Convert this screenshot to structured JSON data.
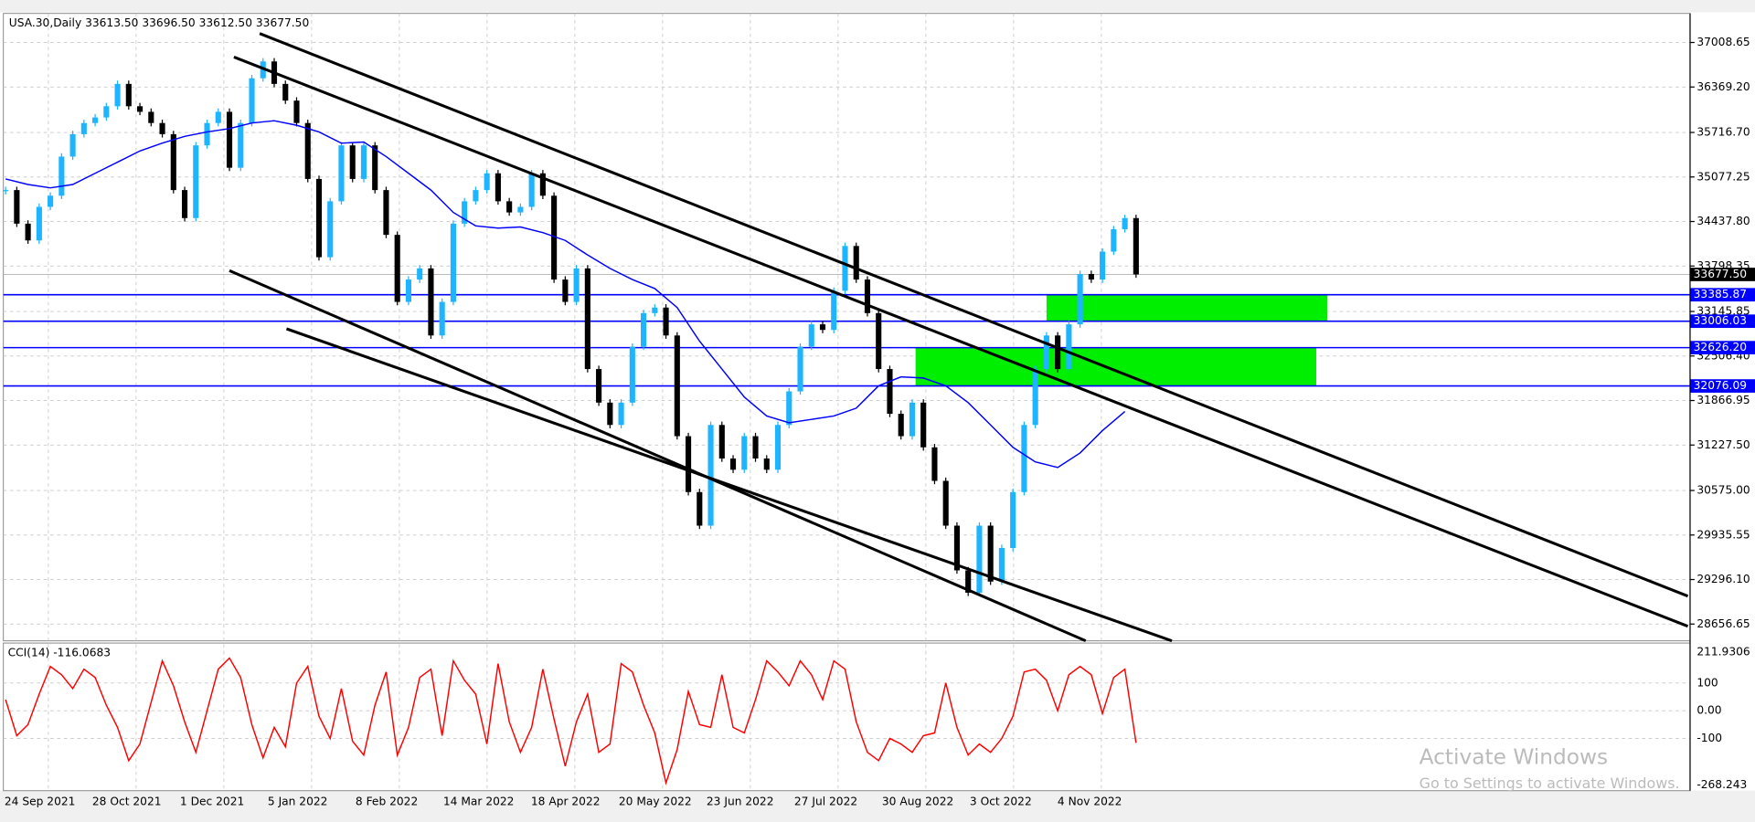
{
  "header": "USA.30,Daily  33613.50 33696.50 33612.50 33677.50",
  "price_axis": {
    "ylim": [
      28432,
      37426
    ],
    "ticks": [
      {
        "value": 37008.65,
        "label": "37008.65"
      },
      {
        "value": 36369.2,
        "label": "36369.20"
      },
      {
        "value": 35716.7,
        "label": "35716.70"
      },
      {
        "value": 35077.25,
        "label": "35077.25"
      },
      {
        "value": 34437.8,
        "label": "34437.80"
      },
      {
        "value": 33798.35,
        "label": "33798.35"
      },
      {
        "value": 33145.85,
        "label": "33145.85"
      },
      {
        "value": 32506.4,
        "label": "32506.40"
      },
      {
        "value": 31866.95,
        "label": "31866.95"
      },
      {
        "value": 31227.5,
        "label": "31227.50"
      },
      {
        "value": 30575.0,
        "label": "30575.00"
      },
      {
        "value": 29935.55,
        "label": "29935.55"
      },
      {
        "value": 29296.1,
        "label": "29296.10"
      },
      {
        "value": 28656.65,
        "label": "28656.65"
      }
    ],
    "current_price": {
      "value": 33677.5,
      "label": "33677.50"
    },
    "levels": [
      {
        "value": 33385.87,
        "label": "33385.87"
      },
      {
        "value": 33006.03,
        "label": "33006.03"
      },
      {
        "value": 32626.2,
        "label": "32626.20"
      },
      {
        "value": 32076.09,
        "label": "32076.09"
      }
    ]
  },
  "closes": [
    34889,
    34407,
    34166,
    34648,
    34808,
    35370,
    35692,
    35852,
    35932,
    36093,
    36414,
    36093,
    36013,
    35852,
    35692,
    34889,
    34487,
    35531,
    35852,
    36013,
    35210,
    35852,
    36495,
    36736,
    36414,
    36174,
    35852,
    35049,
    33925,
    34728,
    35531,
    35049,
    35531,
    34889,
    34246,
    33283,
    33604,
    33764,
    32801,
    33283,
    34407,
    34728,
    34889,
    35130,
    34728,
    34568,
    34648,
    35130,
    34808,
    33604,
    33283,
    33764,
    32319,
    31837,
    31516,
    31837,
    32640,
    33122,
    33202,
    32801,
    31355,
    30552,
    30070,
    31516,
    31034,
    30873,
    31355,
    31034,
    30873,
    31516,
    31998,
    32640,
    32961,
    32881,
    33443,
    34086,
    33604,
    33122,
    32319,
    31676,
    31355,
    31837,
    31195,
    30713,
    30070,
    29428,
    29107,
    30070,
    29267,
    29749,
    30552,
    31516,
    32319,
    32801,
    32319,
    32961,
    33684,
    33604,
    34005,
    34327,
    34487,
    33677.5
  ],
  "moving_average": [
    35049,
    34969,
    34921,
    34969,
    35130,
    35290,
    35451,
    35563,
    35660,
    35724,
    35772,
    35852,
    35885,
    35820,
    35724,
    35563,
    35579,
    35370,
    35130,
    34889,
    34568,
    34375,
    34343,
    34359,
    34278,
    34166,
    33957,
    33764,
    33604,
    33475,
    33202,
    32720,
    32319,
    31917,
    31645,
    31548,
    31596,
    31645,
    31757,
    32078,
    32206,
    32190,
    32078,
    31837,
    31516,
    31195,
    30986,
    30905,
    31114,
    31435,
    31709
  ],
  "cci": {
    "label": "CCI(14) -116.0683",
    "ylim": [
      -268.243,
      211.9306
    ],
    "ticks": [
      {
        "value": 211.9306,
        "label": "211.9306"
      },
      100,
      {
        "value": 0,
        "label": "0.00"
      },
      -100,
      {
        "value": -268.243,
        "label": "-268.243"
      }
    ],
    "values": [
      40,
      -90,
      -50,
      60,
      160,
      130,
      80,
      150,
      120,
      20,
      -60,
      -180,
      -120,
      30,
      180,
      90,
      -40,
      -150,
      0,
      150,
      190,
      120,
      -50,
      -170,
      -60,
      -130,
      100,
      160,
      -20,
      -100,
      80,
      -110,
      -160,
      20,
      140,
      -160,
      -60,
      120,
      150,
      -90,
      180,
      110,
      60,
      -120,
      170,
      -40,
      -150,
      -60,
      150,
      -30,
      -200,
      -40,
      60,
      -150,
      -120,
      170,
      140,
      20,
      -80,
      -260,
      -140,
      70,
      -50,
      -60,
      130,
      -60,
      -80,
      40,
      180,
      140,
      90,
      180,
      130,
      40,
      180,
      150,
      -40,
      -150,
      -180,
      -100,
      -120,
      -150,
      -90,
      -80,
      100,
      -60,
      -160,
      -120,
      -150,
      -100,
      -20,
      140,
      150,
      110,
      0,
      130,
      160,
      130,
      -10,
      120,
      150,
      -116.0683
    ]
  },
  "dates": [
    "24 Sep 2021",
    "28 Oct 2021",
    "1 Dec 2021",
    "5 Jan 2022",
    "8 Feb 2022",
    "14 Mar 2022",
    "18 Apr 2022",
    "20 May 2022",
    "23 Jun 2022",
    "27 Jul 2022",
    "30 Aug 2022",
    "3 Oct 2022",
    "4 Nov 2022"
  ],
  "watermark": {
    "title": "Activate Windows",
    "subtitle": "Go to Settings to activate Windows."
  }
}
